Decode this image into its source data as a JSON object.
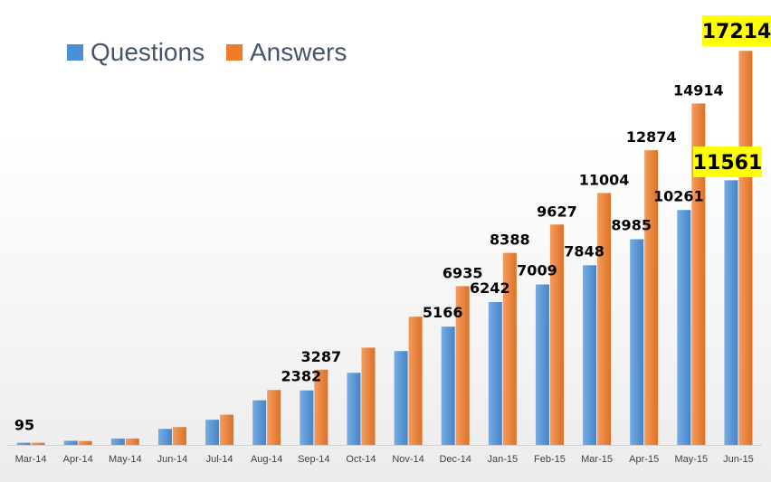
{
  "chart_data": {
    "type": "bar",
    "title": "",
    "xlabel": "",
    "ylabel": "",
    "categories": [
      "Mar-14",
      "Apr-14",
      "May-14",
      "Jun-14",
      "Jul-14",
      "Aug-14",
      "Sep-14",
      "Oct-14",
      "Nov-14",
      "Dec-14",
      "Jan-15",
      "Feb-15",
      "Mar-15",
      "Apr-15",
      "May-15",
      "Jun-15"
    ],
    "series": [
      {
        "name": "Questions",
        "color": "#4a90d9",
        "values": [
          95,
          180,
          280,
          700,
          1100,
          1950,
          2382,
          3150,
          4100,
          5166,
          6242,
          7009,
          7848,
          8985,
          10261,
          11561
        ],
        "labels": [
          "95",
          "",
          "",
          "",
          "",
          "",
          "2382",
          "",
          "",
          "5166",
          "6242",
          "7009",
          "7848",
          "8985",
          "10261",
          "11561"
        ]
      },
      {
        "name": "Answers",
        "color": "#f07b28",
        "values": [
          95,
          170,
          280,
          780,
          1320,
          2400,
          3287,
          4250,
          5600,
          6935,
          8388,
          9627,
          11004,
          12874,
          14914,
          17214
        ],
        "labels": [
          "",
          "",
          "",
          "",
          "",
          "",
          "3287",
          "",
          "",
          "6935",
          "8388",
          "9627",
          "11004",
          "12874",
          "14914",
          "17214"
        ]
      }
    ],
    "highlighted_labels": [
      "11561",
      "17214"
    ],
    "highlight_color": "#ffff00",
    "ylim": [
      0,
      17500
    ],
    "grid": false,
    "legend_position": "top-left"
  }
}
